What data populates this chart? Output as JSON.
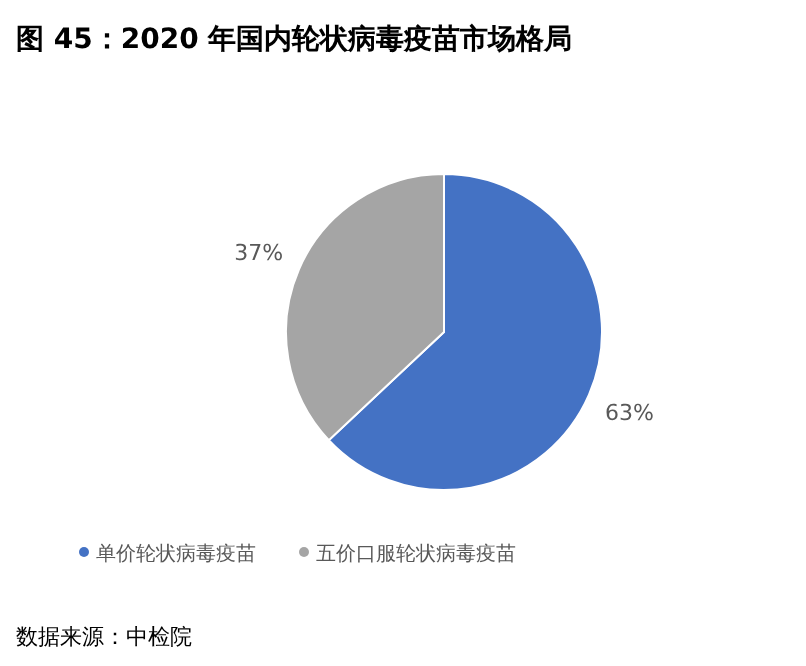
{
  "chart_data": {
    "type": "pie",
    "title": "图 45：2020 年国内轮状病毒疫苗市场格局",
    "categories": [
      "单价轮状病毒疫苗",
      "五价口服轮状病毒疫苗"
    ],
    "values": [
      63,
      37
    ],
    "colors": [
      "#4472c4",
      "#a5a5a5"
    ],
    "value_labels": [
      "63%",
      "37%"
    ],
    "legend": "bottom",
    "annotations": [
      "数据来源：中检院"
    ]
  }
}
